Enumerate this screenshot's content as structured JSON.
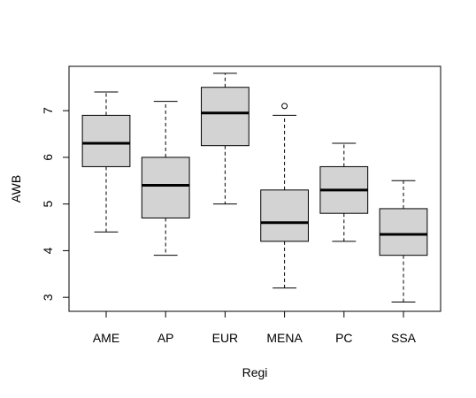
{
  "chart_data": {
    "type": "boxplot",
    "title": "",
    "xlabel": "Regi",
    "ylabel": "AWB",
    "ylim": [
      2.7,
      7.95
    ],
    "yticks": [
      3,
      4,
      5,
      6,
      7
    ],
    "grid": false,
    "box_color": "#d3d3d3",
    "categories": [
      "AME",
      "AP",
      "EUR",
      "MENA",
      "PC",
      "SSA"
    ],
    "boxes": [
      {
        "category": "AME",
        "whisker_low": 4.4,
        "q1": 5.8,
        "median": 6.3,
        "q3": 6.9,
        "whisker_high": 7.4,
        "outliers": []
      },
      {
        "category": "AP",
        "whisker_low": 3.9,
        "q1": 4.7,
        "median": 5.4,
        "q3": 6.0,
        "whisker_high": 7.2,
        "outliers": []
      },
      {
        "category": "EUR",
        "whisker_low": 5.0,
        "q1": 6.25,
        "median": 6.95,
        "q3": 7.5,
        "whisker_high": 7.8,
        "outliers": []
      },
      {
        "category": "MENA",
        "whisker_low": 3.2,
        "q1": 4.2,
        "median": 4.6,
        "q3": 5.3,
        "whisker_high": 6.9,
        "outliers": [
          7.1
        ]
      },
      {
        "category": "PC",
        "whisker_low": 4.2,
        "q1": 4.8,
        "median": 5.3,
        "q3": 5.8,
        "whisker_high": 6.3,
        "outliers": []
      },
      {
        "category": "SSA",
        "whisker_low": 2.9,
        "q1": 3.9,
        "median": 4.35,
        "q3": 4.9,
        "whisker_high": 5.5,
        "outliers": []
      }
    ]
  }
}
